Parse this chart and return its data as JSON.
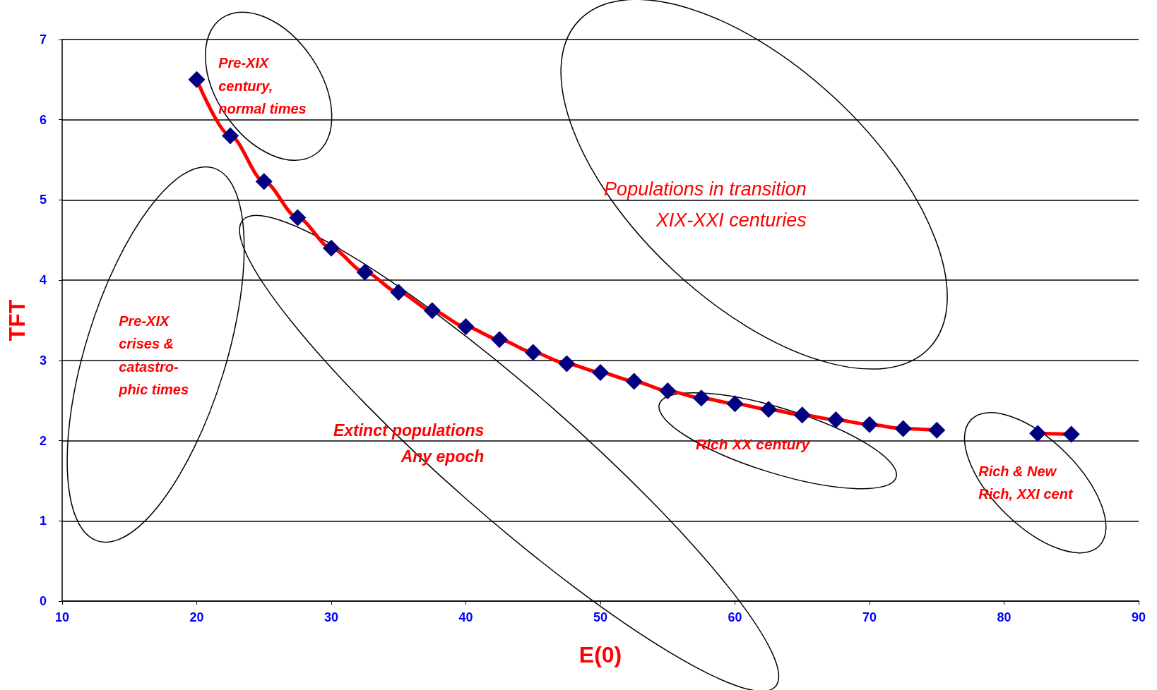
{
  "chart_data": {
    "type": "line",
    "xlabel": "E(0)",
    "ylabel": "TFT",
    "x": [
      20,
      22.5,
      25,
      27.5,
      30,
      32.5,
      35,
      37.5,
      40,
      42.5,
      45,
      47.5,
      50,
      52.5,
      55,
      57.5,
      60,
      62.5,
      65,
      67.5,
      70,
      72.5,
      75,
      77.5,
      80,
      82.5,
      85
    ],
    "series": [
      {
        "color": "#ff0000",
        "colors": [
          "#000080",
          "#000080",
          "#000080",
          "#000080",
          "#000080",
          "#000080",
          "#000080",
          "#000080",
          "#000080",
          "#000080",
          "#000080",
          "#000080",
          "#000080",
          "#000080",
          "#000080",
          "#000080",
          "#000080",
          "#000080",
          "#000080",
          "#000080",
          "#000080",
          "#000080",
          "#000080",
          "#000080",
          "#000080",
          "#000080",
          "#000080"
        ],
        "values": [
          6.5,
          5.8,
          5.23,
          4.78,
          4.4,
          4.1,
          3.85,
          3.62,
          3.42,
          3.26,
          3.1,
          2.96,
          2.85,
          2.74,
          2.62,
          2.53,
          2.46,
          2.39,
          2.32,
          2.26,
          2.2,
          2.15,
          2.13,
          null,
          null,
          2.09,
          2.08
        ]
      }
    ],
    "xlim": [
      10,
      90
    ],
    "xticks": [
      10,
      20,
      30,
      40,
      50,
      60,
      70,
      80,
      90
    ],
    "ylim": [
      0,
      7
    ],
    "yticks": [
      0,
      1,
      2,
      3,
      4,
      5,
      6,
      7
    ],
    "grid": "y",
    "marker": "diamond",
    "line_style": "solid",
    "annotations": [
      "Pre-XIX\ncentury,\nnormal times",
      "Pre-XIX\ncrises &\ncatastro-\nphic times",
      "Extinct populations\nAny epoch",
      "Populations in transition\nXIX-XXI centuries",
      "Rich XX century",
      "Rich & New\nRich, XXI cent"
    ]
  }
}
